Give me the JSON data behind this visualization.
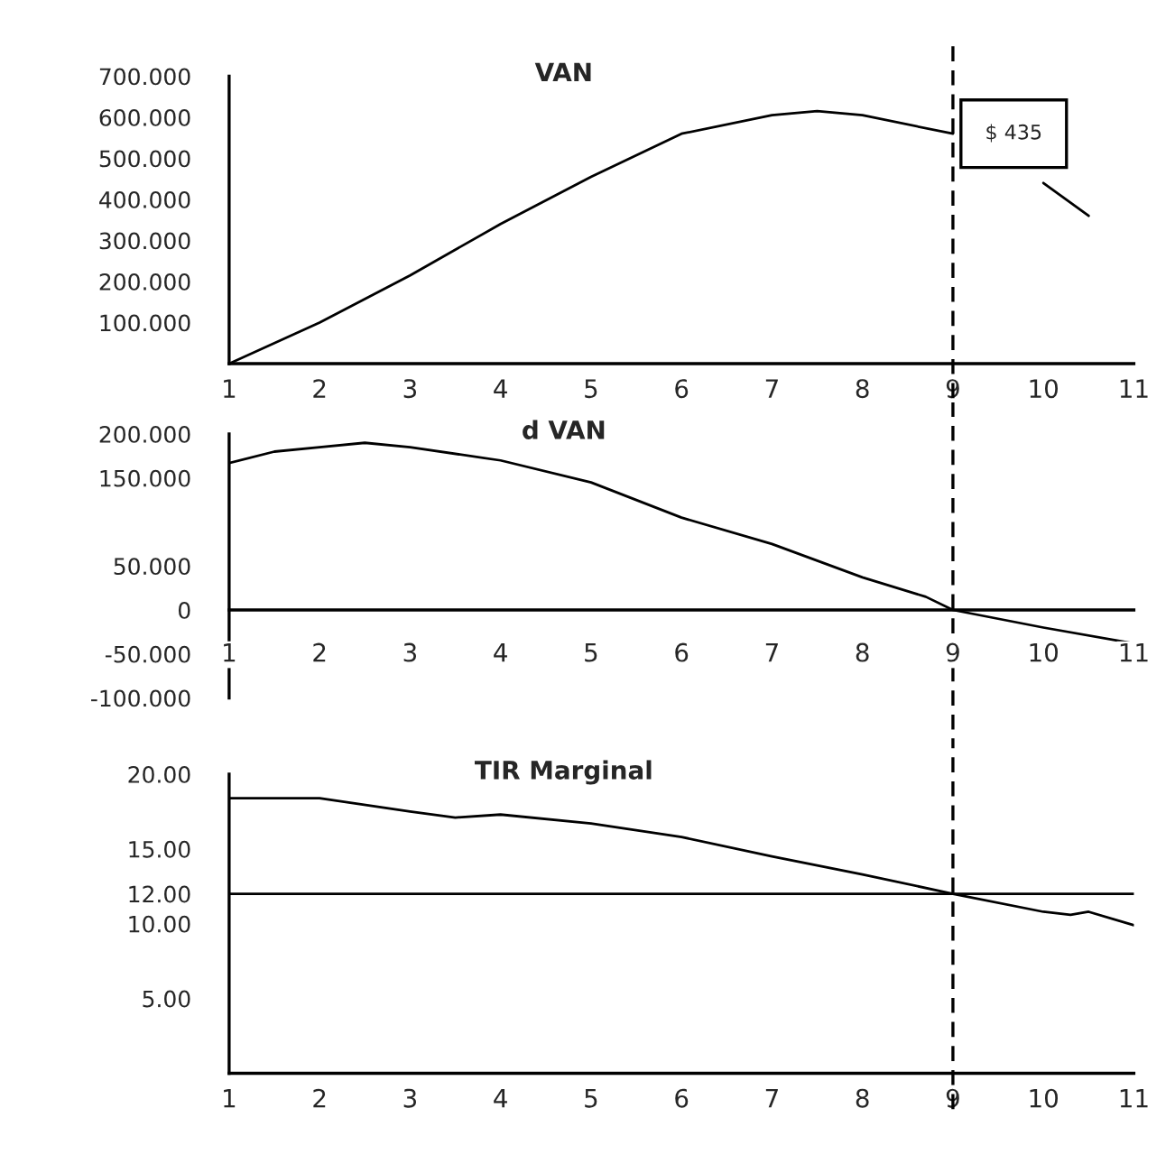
{
  "chart_data": [
    {
      "type": "line",
      "title": "VAN",
      "xlim": [
        1,
        11
      ],
      "xticks": [
        1,
        2,
        3,
        4,
        5,
        6,
        7,
        8,
        9,
        10,
        11
      ],
      "ylim": [
        0,
        700
      ],
      "yticks": [
        {
          "value": 100,
          "label": "100.000"
        },
        {
          "value": 200,
          "label": "200.000"
        },
        {
          "value": 300,
          "label": "300.000"
        },
        {
          "value": 400,
          "label": "400.000"
        },
        {
          "value": 500,
          "label": "500.000"
        },
        {
          "value": 600,
          "label": "600.000"
        },
        {
          "value": 700,
          "label": "700.000"
        }
      ],
      "series": [
        {
          "color": "#000000",
          "x": [
            1,
            2,
            3,
            4,
            5,
            6,
            7,
            7.5,
            8,
            9,
            9.5,
            10,
            10.5
          ],
          "values": [
            0,
            100,
            215,
            340,
            455,
            560,
            605,
            615,
            605,
            560,
            null,
            440,
            360
          ]
        }
      ],
      "annotations": [
        {
          "text": "$ 435",
          "x": 9,
          "y": 560
        }
      ],
      "ref_lines": [
        {
          "axis": "x",
          "value": 9,
          "color": "#000000",
          "line_style": "dashed"
        }
      ],
      "grid": false,
      "legend": false,
      "marker": "none",
      "line_style": "solid"
    },
    {
      "type": "line",
      "title": "d VAN",
      "xlim": [
        1,
        11
      ],
      "xticks": [
        1,
        2,
        3,
        4,
        5,
        6,
        7,
        8,
        9,
        10,
        11
      ],
      "ylim": [
        -100,
        200
      ],
      "yticks": [
        {
          "value": -100,
          "label": "-100.000"
        },
        {
          "value": -50,
          "label": "-50.000"
        },
        0,
        {
          "value": 50,
          "label": "50.000"
        },
        {
          "value": 150,
          "label": "150.000"
        },
        {
          "value": 200,
          "label": "200.000"
        }
      ],
      "series": [
        {
          "color": "#000000",
          "x": [
            1,
            1.5,
            2,
            2.5,
            3,
            4,
            5,
            6,
            7,
            8,
            8.7,
            9,
            10,
            11
          ],
          "values": [
            167,
            180,
            185,
            190,
            185,
            170,
            145,
            105,
            75,
            37,
            15,
            0,
            -20,
            -38
          ]
        }
      ],
      "ref_lines": [
        {
          "axis": "x",
          "value": 9,
          "color": "#000000",
          "line_style": "dashed"
        }
      ],
      "grid": false,
      "legend": false,
      "marker": "none",
      "line_style": "solid"
    },
    {
      "type": "line",
      "title": "TIR Marginal",
      "xlim": [
        1,
        11
      ],
      "xticks": [
        1,
        2,
        3,
        4,
        5,
        6,
        7,
        8,
        9,
        10,
        11
      ],
      "ylim": [
        0,
        20
      ],
      "yticks": [
        {
          "value": 5,
          "label": "5.00"
        },
        {
          "value": 10,
          "label": "10.00"
        },
        {
          "value": 12,
          "label": "12.00"
        },
        {
          "value": 15,
          "label": "15.00"
        },
        {
          "value": 20,
          "label": "20.00"
        }
      ],
      "series": [
        {
          "color": "#000000",
          "x": [
            1,
            2,
            3,
            3.5,
            4,
            5,
            6,
            7,
            8,
            9,
            10,
            10.3,
            10.5,
            11
          ],
          "values": [
            18.4,
            18.4,
            17.5,
            17.1,
            17.3,
            16.7,
            15.8,
            14.5,
            13.3,
            12.0,
            10.8,
            10.6,
            10.8,
            9.9
          ]
        }
      ],
      "ref_lines": [
        {
          "axis": "y",
          "value": 12,
          "color": "#000000",
          "line_style": "solid"
        },
        {
          "axis": "x",
          "value": 9,
          "color": "#000000",
          "line_style": "dashed"
        }
      ],
      "grid": false,
      "legend": false,
      "marker": "none",
      "line_style": "solid"
    }
  ]
}
